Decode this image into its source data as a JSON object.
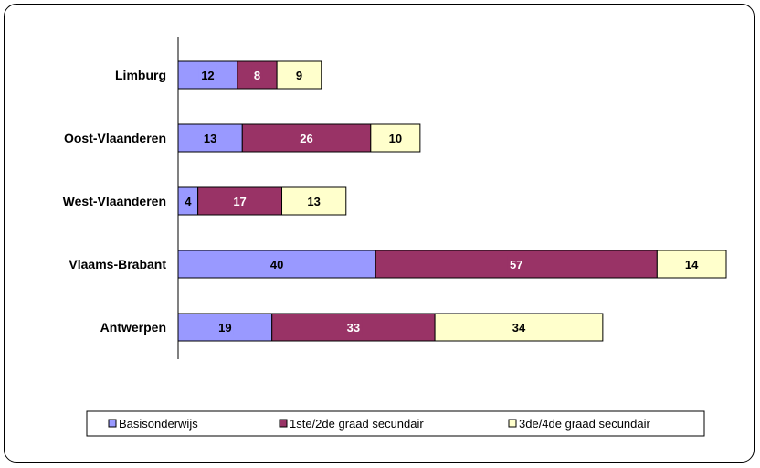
{
  "chart_data": {
    "type": "bar",
    "orientation": "horizontal",
    "stacked": true,
    "categories": [
      "Antwerpen",
      "Vlaams-Brabant",
      "West-Vlaanderen",
      "Oost-Vlaanderen",
      "Limburg"
    ],
    "series": [
      {
        "name": "Basisonderwijs",
        "color": "#9999ff",
        "label_color": "#000000",
        "values": [
          19,
          40,
          4,
          13,
          12
        ]
      },
      {
        "name": "1ste/2de graad secundair",
        "color": "#993366",
        "label_color": "#ffffff",
        "values": [
          33,
          57,
          17,
          26,
          8
        ]
      },
      {
        "name": "3de/4de graad secundair",
        "color": "#ffffcc",
        "label_color": "#000000",
        "values": [
          34,
          14,
          13,
          10,
          9
        ]
      }
    ],
    "title": "",
    "xlabel": "",
    "ylabel": "",
    "xlim": [
      0,
      111
    ],
    "grid": false,
    "legend": "bottom"
  }
}
